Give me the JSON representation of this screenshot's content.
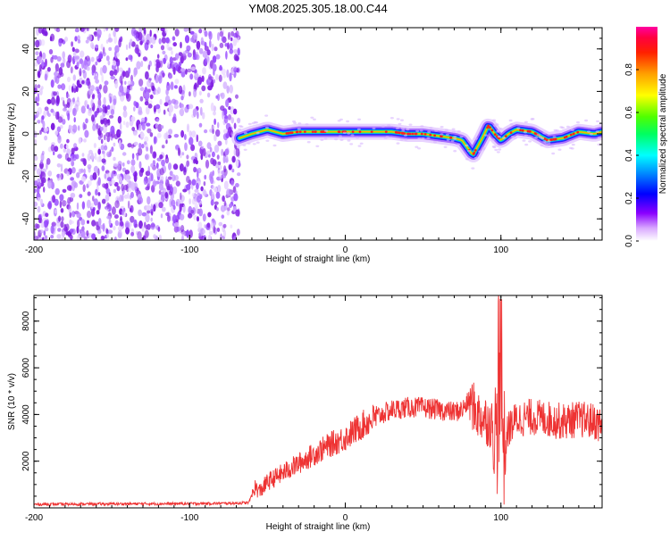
{
  "title": "YM08.2025.305.18.00.C44",
  "chart_data": [
    {
      "type": "heatmap",
      "xlabel": "Height of straight line (km)",
      "ylabel": "Frequency (Hz)",
      "xlim": [
        -200,
        165
      ],
      "ylim": [
        -50,
        50
      ],
      "xticks": [
        -200,
        -100,
        0,
        100
      ],
      "yticks": [
        -40,
        -20,
        0,
        20,
        40
      ],
      "noise_region_x": [
        -200,
        -68
      ],
      "signal_ridge": {
        "x": [
          -68,
          -60,
          -50,
          -40,
          -30,
          -20,
          -10,
          0,
          10,
          20,
          30,
          40,
          50,
          60,
          70,
          75,
          80,
          82,
          85,
          88,
          92,
          96,
          100,
          105,
          110,
          120,
          130,
          140,
          150,
          160,
          165
        ],
        "y": [
          -2,
          0,
          2,
          0,
          1,
          1,
          1,
          1,
          1,
          1,
          1,
          0,
          0,
          -1,
          -2,
          -3,
          -8,
          -10,
          -6,
          -2,
          4,
          0,
          -3,
          0,
          2,
          1,
          -3,
          -2,
          1,
          0,
          1
        ]
      },
      "colorbar": {
        "label": "Normalized spectral amplitude",
        "range": [
          0,
          1
        ],
        "ticks": [
          0.0,
          0.2,
          0.4,
          0.6,
          0.8
        ]
      }
    },
    {
      "type": "line",
      "xlabel": "Height of straight line (km)",
      "ylabel": "SNR (10 * v/v)",
      "xlim": [
        -200,
        165
      ],
      "ylim": [
        0,
        9100
      ],
      "xticks": [
        -200,
        -100,
        0,
        100
      ],
      "yticks": [
        2000,
        4000,
        6000,
        8000
      ],
      "series": [
        {
          "color": "#ee3333",
          "x": [
            -200,
            -150,
            -100,
            -70,
            -62,
            -58,
            -55,
            -50,
            -40,
            -30,
            -20,
            -10,
            0,
            10,
            20,
            30,
            40,
            50,
            60,
            70,
            75,
            80,
            85,
            90,
            95,
            98,
            100,
            102,
            105,
            110,
            120,
            130,
            140,
            150,
            160,
            165
          ],
          "y": [
            150,
            170,
            180,
            200,
            220,
            900,
            700,
            1100,
            1500,
            1900,
            2300,
            2700,
            3000,
            3500,
            3900,
            4200,
            4300,
            4300,
            4200,
            4100,
            4200,
            4600,
            4000,
            3800,
            3500,
            3000,
            5000,
            2500,
            3400,
            3800,
            3900,
            3800,
            3700,
            3800,
            3700,
            3500
          ]
        }
      ]
    }
  ]
}
